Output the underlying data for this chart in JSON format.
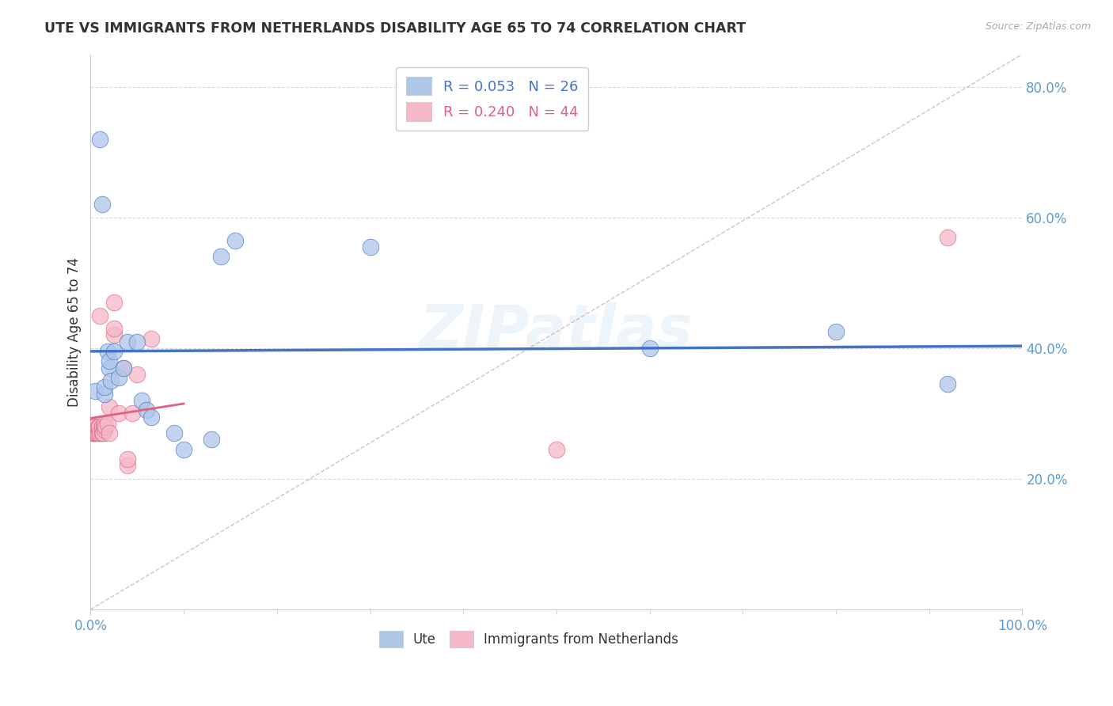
{
  "title": "UTE VS IMMIGRANTS FROM NETHERLANDS DISABILITY AGE 65 TO 74 CORRELATION CHART",
  "source": "Source: ZipAtlas.com",
  "ylabel": "Disability Age 65 to 74",
  "xlim": [
    0,
    1.0
  ],
  "ylim": [
    0.0,
    0.85
  ],
  "xtick_positions": [
    0.0,
    1.0
  ],
  "xtick_labels": [
    "0.0%",
    "100.0%"
  ],
  "ytick_positions": [
    0.2,
    0.4,
    0.6,
    0.8
  ],
  "ytick_labels": [
    "20.0%",
    "40.0%",
    "60.0%",
    "80.0%"
  ],
  "legend_ute_R": "R = 0.053",
  "legend_ute_N": "N = 26",
  "legend_imm_R": "R = 0.240",
  "legend_imm_N": "N = 44",
  "ute_color": "#aec6e8",
  "imm_color": "#f4b8c8",
  "ute_line_color": "#4472c4",
  "imm_line_color": "#e06080",
  "diag_line_color": "#ccb0b5",
  "watermark": "ZIPatlas",
  "ute_points_x": [
    0.005,
    0.01,
    0.012,
    0.015,
    0.015,
    0.018,
    0.02,
    0.02,
    0.022,
    0.025,
    0.03,
    0.035,
    0.04,
    0.05,
    0.055,
    0.06,
    0.065,
    0.09,
    0.1,
    0.13,
    0.14,
    0.155,
    0.3,
    0.6,
    0.8,
    0.92
  ],
  "ute_points_y": [
    0.335,
    0.72,
    0.62,
    0.33,
    0.34,
    0.395,
    0.37,
    0.38,
    0.35,
    0.395,
    0.355,
    0.37,
    0.41,
    0.41,
    0.32,
    0.305,
    0.295,
    0.27,
    0.245,
    0.26,
    0.54,
    0.565,
    0.555,
    0.4,
    0.425,
    0.345
  ],
  "imm_points_x": [
    0.001,
    0.002,
    0.002,
    0.003,
    0.003,
    0.003,
    0.004,
    0.004,
    0.004,
    0.005,
    0.005,
    0.005,
    0.006,
    0.006,
    0.007,
    0.007,
    0.008,
    0.008,
    0.009,
    0.009,
    0.01,
    0.01,
    0.012,
    0.012,
    0.013,
    0.014,
    0.015,
    0.015,
    0.016,
    0.018,
    0.02,
    0.02,
    0.025,
    0.025,
    0.025,
    0.03,
    0.035,
    0.04,
    0.04,
    0.045,
    0.05,
    0.065,
    0.5,
    0.92
  ],
  "imm_points_y": [
    0.275,
    0.27,
    0.275,
    0.27,
    0.275,
    0.28,
    0.27,
    0.275,
    0.28,
    0.27,
    0.275,
    0.28,
    0.27,
    0.275,
    0.27,
    0.275,
    0.27,
    0.28,
    0.275,
    0.28,
    0.27,
    0.45,
    0.27,
    0.28,
    0.27,
    0.28,
    0.275,
    0.285,
    0.28,
    0.285,
    0.27,
    0.31,
    0.47,
    0.42,
    0.43,
    0.3,
    0.37,
    0.22,
    0.23,
    0.3,
    0.36,
    0.415,
    0.245,
    0.57
  ],
  "background_color": "#ffffff",
  "grid_color": "#d8d8d8",
  "minor_xtick_positions": [
    0.1,
    0.2,
    0.3,
    0.4,
    0.5,
    0.6,
    0.7,
    0.8,
    0.9
  ]
}
